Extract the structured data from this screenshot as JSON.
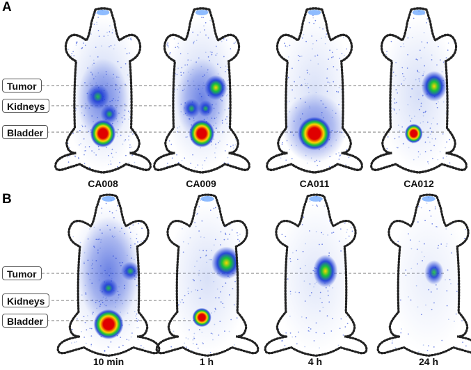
{
  "panels": [
    {
      "letter": "A",
      "labels": [
        "Tumor",
        "Kidneys",
        "Bladder"
      ],
      "captions": [
        "CA008",
        "CA009",
        "CA011",
        "CA012"
      ]
    },
    {
      "letter": "B",
      "labels": [
        "Tumor",
        "Kidneys",
        "Bladder"
      ],
      "captions": [
        "10 min",
        "1 h",
        "4 h",
        "24 h"
      ]
    }
  ],
  "colors": {
    "outline": "#222222",
    "guide_line": "#777777",
    "hot": "#e00000",
    "warm": "#ffd400",
    "mid": "#19c23a",
    "cool": "#1f3fd6",
    "cold": "#8fa6ea"
  }
}
